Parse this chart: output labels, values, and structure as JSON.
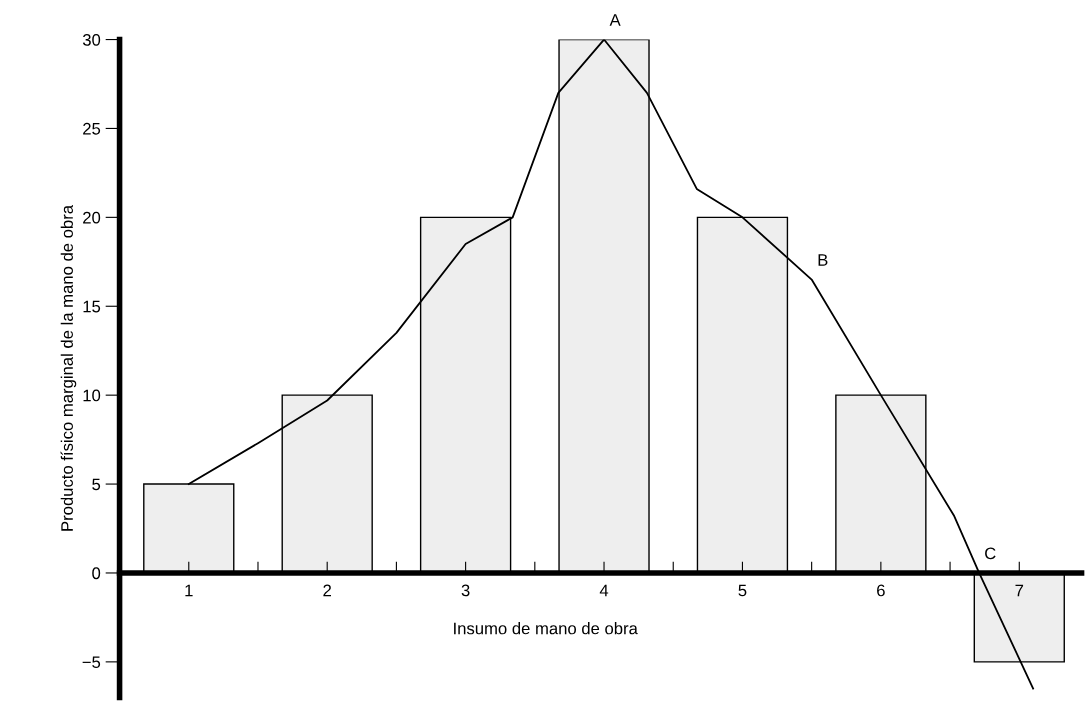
{
  "chart_data": {
    "type": "bar",
    "xlabel": "Insumo de mano de obra",
    "ylabel": "Producto físico marginal de la mano de obra",
    "x": [
      1,
      2,
      3,
      4,
      5,
      6,
      7
    ],
    "values": [
      5,
      10,
      20,
      30,
      20,
      10,
      -5
    ],
    "color": "#eeeeee",
    "series": [
      {
        "type": "line",
        "color": "#000000",
        "x": [
          1,
          1.5,
          2,
          2.5,
          3,
          3.34,
          3.67,
          4,
          4.31,
          4.67,
          5,
          5.5,
          6,
          6.53,
          6.71,
          7.1
        ],
        "values": [
          5,
          7.3,
          9.7,
          13.5,
          18.5,
          20,
          27,
          30,
          27,
          21.6,
          20,
          16.5,
          10,
          3.2,
          0,
          -6.5
        ]
      }
    ],
    "xlim": [
      0.5,
      7.45
    ],
    "ylim": [
      -7,
      30
    ],
    "xticks": [
      1,
      2,
      3,
      4,
      5,
      6,
      7,
      {
        "value": 1.5,
        "label": null
      },
      {
        "value": 2.5,
        "label": null
      },
      {
        "value": 3.5,
        "label": null
      },
      {
        "value": 4.5,
        "label": null
      },
      {
        "value": 5.5,
        "label": null
      },
      {
        "value": 6.5,
        "label": null
      }
    ],
    "yticks": [
      -5,
      0,
      5,
      10,
      15,
      20,
      25,
      30
    ],
    "annotations": [
      {
        "text": "A",
        "x": 4,
        "y": 30
      },
      {
        "text": "B",
        "x": 5.5,
        "y": 16.5
      },
      {
        "text": "C",
        "x": 6.71,
        "y": 0
      }
    ],
    "grid": false,
    "legend": false,
    "marker": "none",
    "line_style": "solid"
  }
}
